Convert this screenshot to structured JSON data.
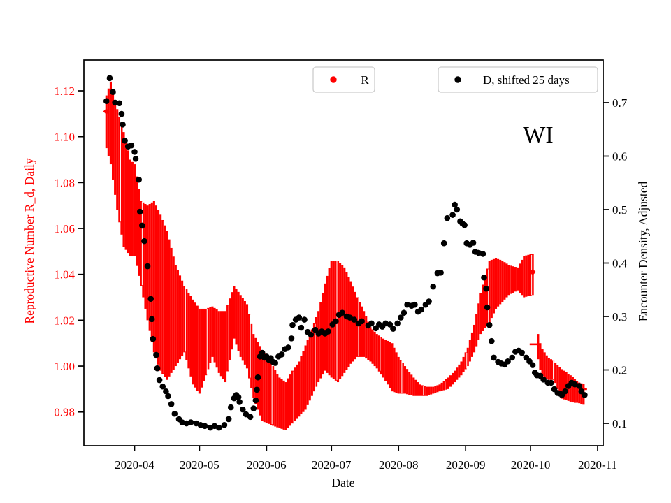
{
  "figure": {
    "background": "#ffffff",
    "annotation": "WI"
  },
  "legend_r": {
    "label": "R"
  },
  "legend_d": {
    "label": "D, shifted 25 days"
  },
  "axes": {
    "xlabel": "Date",
    "x_day0_date": "2020-03-15",
    "xlim_days": [
      -6.42,
      233.58
    ],
    "x_ticks": [
      {
        "day": 17,
        "label": "2020-04"
      },
      {
        "day": 47,
        "label": "2020-05"
      },
      {
        "day": 78,
        "label": "2020-06"
      },
      {
        "day": 108,
        "label": "2020-07"
      },
      {
        "day": 139,
        "label": "2020-08"
      },
      {
        "day": 170,
        "label": "2020-09"
      },
      {
        "day": 200,
        "label": "2020-10"
      },
      {
        "day": 231,
        "label": "2020-11"
      }
    ],
    "left": {
      "label": "Reproductive Number R_d, Daily",
      "color": "#ff0000",
      "ticks": [
        1.12,
        1.1,
        1.08,
        1.06,
        1.04,
        1.02,
        1.0,
        0.98
      ],
      "lim": [
        0.9653,
        1.1334
      ]
    },
    "right": {
      "label": "Encounter Density, Adjusted",
      "color": "#000000",
      "ticks": [
        0.7,
        0.6,
        0.5,
        0.4,
        0.3,
        0.2,
        0.1
      ],
      "lim": [
        0.0582,
        0.7797
      ]
    }
  },
  "chart_data": {
    "type": "scatter",
    "title": "WI",
    "xlabel": "Date",
    "x_unit": "days since 2020-03-15",
    "grid": false,
    "series": [
      {
        "name": "R",
        "axis": "left",
        "style": "errorbar_band",
        "color": "#ff0000",
        "marker": "diamond",
        "band_segments": [
          [
            [
              4,
              1.095,
              1.118
            ],
            [
              6,
              1.088,
              1.124
            ],
            [
              9,
              1.068,
              1.112
            ],
            [
              12,
              1.052,
              1.102
            ],
            [
              15,
              1.048,
              1.09
            ],
            [
              17,
              1.048,
              1.088
            ],
            [
              20,
              1.035,
              1.072
            ],
            [
              23,
              1.02,
              1.07
            ],
            [
              26,
              1.006,
              1.072
            ],
            [
              29,
              0.998,
              1.066
            ],
            [
              32,
              0.994,
              1.059
            ],
            [
              36,
              1.0,
              1.044
            ],
            [
              40,
              1.006,
              1.035
            ],
            [
              44,
              0.992,
              1.029
            ],
            [
              47,
              0.988,
              1.025
            ],
            [
              50,
              0.996,
              1.025
            ],
            [
              53,
              1.004,
              1.026
            ],
            [
              56,
              0.997,
              1.024
            ],
            [
              59,
              0.993,
              1.024
            ],
            [
              63,
              1.012,
              1.035
            ],
            [
              66,
              1.004,
              1.031
            ],
            [
              69,
              0.999,
              1.027
            ],
            [
              72,
              0.986,
              1.014
            ],
            [
              76,
              0.976,
              1.007
            ],
            [
              81,
              0.974,
              1.0
            ],
            [
              84,
              0.973,
              0.995
            ],
            [
              87,
              0.972,
              0.993
            ],
            [
              90,
              0.975,
              0.998
            ],
            [
              93,
              0.978,
              1.002
            ],
            [
              96,
              0.981,
              1.009
            ],
            [
              99,
              0.987,
              1.016
            ],
            [
              102,
              0.993,
              1.024
            ],
            [
              105,
              0.998,
              1.036
            ],
            [
              108,
              0.995,
              1.046
            ],
            [
              111,
              0.993,
              1.046
            ],
            [
              114,
              0.997,
              1.043
            ],
            [
              117,
              1.001,
              1.037
            ],
            [
              120,
              1.004,
              1.03
            ],
            [
              123,
              1.004,
              1.024
            ],
            [
              126,
              1.002,
              1.017
            ],
            [
              129,
              0.999,
              1.014
            ],
            [
              132,
              0.995,
              1.012
            ],
            [
              136,
              0.989,
              1.01
            ],
            [
              139,
              0.988,
              1.004
            ],
            [
              142,
              0.988,
              1.0
            ],
            [
              146,
              0.987,
              0.995
            ],
            [
              149,
              0.987,
              0.992
            ],
            [
              152,
              0.987,
              0.991
            ],
            [
              155,
              0.988,
              0.991
            ],
            [
              158,
              0.989,
              0.992
            ],
            [
              162,
              0.99,
              0.995
            ],
            [
              165,
              0.993,
              0.998
            ],
            [
              168,
              0.996,
              1.002
            ],
            [
              171,
              1.0,
              1.008
            ],
            [
              174,
              1.006,
              1.018
            ],
            [
              177,
              1.014,
              1.032
            ],
            [
              181,
              1.019,
              1.046
            ],
            [
              184,
              1.025,
              1.047
            ],
            [
              187,
              1.028,
              1.046
            ],
            [
              190,
              1.031,
              1.044
            ],
            [
              194,
              1.033,
              1.043
            ],
            [
              197,
              1.03,
              1.048
            ],
            [
              201,
              1.031,
              1.049
            ]
          ],
          [
            [
              203.5,
              1.003,
              1.014
            ],
            [
              205,
              0.996,
              1.008
            ],
            [
              208,
              0.994,
              1.004
            ],
            [
              211,
              0.994,
              1.002
            ],
            [
              214,
              0.986,
              0.999
            ],
            [
              217,
              0.985,
              0.997
            ],
            [
              220,
              0.984,
              0.995
            ],
            [
              222,
              0.984,
              0.993
            ],
            [
              225,
              0.983,
              0.992
            ]
          ]
        ],
        "visible_point_markers": [
          [
            4,
            1.111
          ],
          [
            201,
            1.041
          ]
        ],
        "dash_markers": [
          [
            199.6,
            204.1,
            1.0095
          ],
          [
            215.8,
            219.0,
            0.9919
          ],
          [
            222.9,
            226.1,
            0.99
          ]
        ]
      },
      {
        "name": "D, shifted 25 days",
        "axis": "right",
        "style": "dots",
        "color": "#000000",
        "points": [
          [
            4,
            0.703
          ],
          [
            5.5,
            0.746
          ],
          [
            7,
            0.72
          ],
          [
            8,
            0.7
          ],
          [
            10,
            0.699
          ],
          [
            11,
            0.679
          ],
          [
            11.5,
            0.659
          ],
          [
            12.5,
            0.629
          ],
          [
            14,
            0.618
          ],
          [
            15.5,
            0.62
          ],
          [
            17,
            0.608
          ],
          [
            17.5,
            0.595
          ],
          [
            19,
            0.556
          ],
          [
            19.5,
            0.496
          ],
          [
            20.5,
            0.47
          ],
          [
            21.5,
            0.441
          ],
          [
            23,
            0.394
          ],
          [
            24.5,
            0.333
          ],
          [
            25,
            0.295
          ],
          [
            25.5,
            0.258
          ],
          [
            27,
            0.228
          ],
          [
            27.5,
            0.203
          ],
          [
            28.5,
            0.181
          ],
          [
            30,
            0.169
          ],
          [
            31.5,
            0.16
          ],
          [
            32.5,
            0.151
          ],
          [
            34,
            0.136
          ],
          [
            35.5,
            0.118
          ],
          [
            37.5,
            0.108
          ],
          [
            39,
            0.102
          ],
          [
            41,
            0.1
          ],
          [
            43,
            0.102
          ],
          [
            45.5,
            0.1
          ],
          [
            47.5,
            0.097
          ],
          [
            49.5,
            0.095
          ],
          [
            52,
            0.092
          ],
          [
            54,
            0.095
          ],
          [
            56,
            0.092
          ],
          [
            58.5,
            0.097
          ],
          [
            60.5,
            0.108
          ],
          [
            61.5,
            0.13
          ],
          [
            63,
            0.147
          ],
          [
            64,
            0.153
          ],
          [
            65,
            0.149
          ],
          [
            65.5,
            0.14
          ],
          [
            67,
            0.126
          ],
          [
            68.5,
            0.117
          ],
          [
            70.5,
            0.112
          ],
          [
            72,
            0.128
          ],
          [
            73,
            0.143
          ],
          [
            73.5,
            0.163
          ],
          [
            74,
            0.186
          ],
          [
            75,
            0.225
          ],
          [
            76,
            0.232
          ],
          [
            77,
            0.223
          ],
          [
            78,
            0.225
          ],
          [
            79,
            0.219
          ],
          [
            80,
            0.222
          ],
          [
            81,
            0.215
          ],
          [
            82,
            0.213
          ],
          [
            83.5,
            0.225
          ],
          [
            85,
            0.229
          ],
          [
            86.5,
            0.239
          ],
          [
            88,
            0.242
          ],
          [
            89.5,
            0.259
          ],
          [
            90,
            0.284
          ],
          [
            91.5,
            0.294
          ],
          [
            93,
            0.298
          ],
          [
            94,
            0.279
          ],
          [
            95.5,
            0.294
          ],
          [
            97,
            0.271
          ],
          [
            98.5,
            0.266
          ],
          [
            100.5,
            0.275
          ],
          [
            102,
            0.268
          ],
          [
            103.5,
            0.272
          ],
          [
            105,
            0.268
          ],
          [
            106.5,
            0.272
          ],
          [
            108.5,
            0.285
          ],
          [
            110,
            0.291
          ],
          [
            111.5,
            0.303
          ],
          [
            113,
            0.307
          ],
          [
            115,
            0.3
          ],
          [
            116.5,
            0.298
          ],
          [
            118.5,
            0.294
          ],
          [
            120.5,
            0.287
          ],
          [
            122,
            0.291
          ],
          [
            125,
            0.283
          ],
          [
            126.5,
            0.287
          ],
          [
            128.5,
            0.278
          ],
          [
            130,
            0.285
          ],
          [
            131.5,
            0.281
          ],
          [
            133,
            0.287
          ],
          [
            135,
            0.285
          ],
          [
            136.5,
            0.277
          ],
          [
            138.5,
            0.287
          ],
          [
            140,
            0.298
          ],
          [
            141.5,
            0.307
          ],
          [
            143,
            0.322
          ],
          [
            145,
            0.32
          ],
          [
            146.5,
            0.322
          ],
          [
            148,
            0.309
          ],
          [
            149.5,
            0.313
          ],
          [
            151.5,
            0.322
          ],
          [
            153,
            0.328
          ],
          [
            155,
            0.356
          ],
          [
            157,
            0.381
          ],
          [
            158.5,
            0.382
          ],
          [
            160,
            0.437
          ],
          [
            161.5,
            0.484
          ],
          [
            164,
            0.49
          ],
          [
            165,
            0.509
          ],
          [
            166,
            0.5
          ],
          [
            167.5,
            0.478
          ],
          [
            168.5,
            0.474
          ],
          [
            169.5,
            0.471
          ],
          [
            170.5,
            0.437
          ],
          [
            172,
            0.434
          ],
          [
            173.5,
            0.438
          ],
          [
            174.5,
            0.421
          ],
          [
            176,
            0.419
          ],
          [
            178,
            0.417
          ],
          [
            178.5,
            0.373
          ],
          [
            179.5,
            0.352
          ],
          [
            180,
            0.317
          ],
          [
            181,
            0.284
          ],
          [
            182,
            0.254
          ],
          [
            183,
            0.223
          ],
          [
            185,
            0.215
          ],
          [
            186.5,
            0.212
          ],
          [
            188,
            0.21
          ],
          [
            189.5,
            0.216
          ],
          [
            191.5,
            0.223
          ],
          [
            193,
            0.234
          ],
          [
            194.5,
            0.236
          ],
          [
            196,
            0.232
          ],
          [
            198,
            0.223
          ],
          [
            199.5,
            0.216
          ],
          [
            201,
            0.209
          ],
          [
            202,
            0.195
          ],
          [
            203,
            0.19
          ],
          [
            204.5,
            0.189
          ],
          [
            206,
            0.182
          ],
          [
            208,
            0.176
          ],
          [
            209.5,
            0.176
          ],
          [
            211,
            0.164
          ],
          [
            212.5,
            0.157
          ],
          [
            213.5,
            0.156
          ],
          [
            214.5,
            0.153
          ],
          [
            216,
            0.16
          ],
          [
            217.5,
            0.17
          ],
          [
            219,
            0.176
          ],
          [
            220.5,
            0.173
          ],
          [
            222.5,
            0.17
          ],
          [
            223.5,
            0.16
          ],
          [
            225,
            0.153
          ]
        ]
      }
    ],
    "left_ylim": [
      0.9653,
      1.1334
    ],
    "right_ylim": [
      0.0582,
      0.7797
    ],
    "legend_position": "upper center, two separate boxes"
  }
}
